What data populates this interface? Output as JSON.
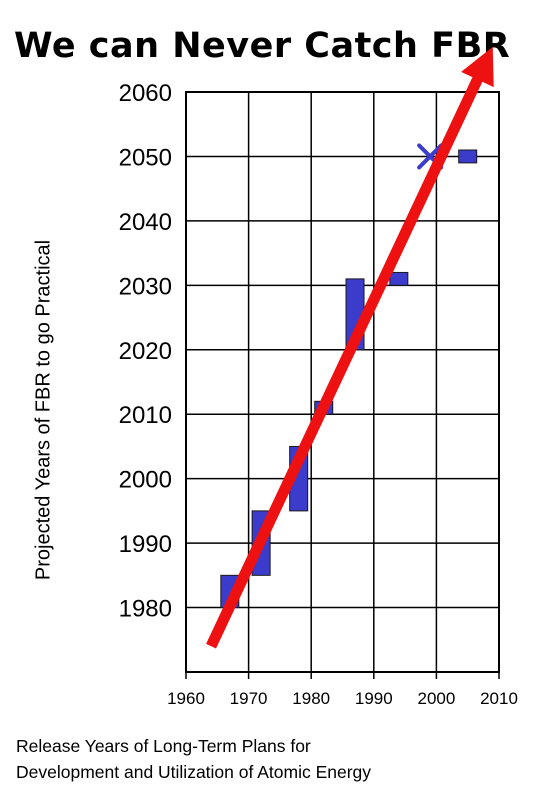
{
  "chart_data": {
    "type": "bar",
    "title": "We can Never Catch FBR",
    "ylabel": "Projected Years of FBR to go Practical",
    "xlabel_lines": [
      "Release Years of Long-Term Plans for",
      "Development and Utilization of Atomic Energy"
    ],
    "xlim": [
      1960,
      2010
    ],
    "ylim": [
      1970,
      2060
    ],
    "x_ticks": [
      1960,
      1970,
      1980,
      1990,
      2000,
      2010
    ],
    "y_ticks": [
      1980,
      1990,
      2000,
      2010,
      2020,
      2030,
      2040,
      2050,
      2060
    ],
    "grid": true,
    "series": [
      {
        "type": "range",
        "color": "#3b3bcc",
        "ranges": [
          {
            "x": 1967,
            "y_low": 1980,
            "y_high": 1985
          },
          {
            "x": 1972,
            "y_low": 1985,
            "y_high": 1995
          },
          {
            "x": 1978,
            "y_low": 1995,
            "y_high": 2005
          },
          {
            "x": 1982,
            "y_low": 2010,
            "y_high": 2012
          },
          {
            "x": 1987,
            "y_low": 2020,
            "y_high": 2031
          },
          {
            "x": 1994,
            "y_low": 2030,
            "y_high": 2032
          },
          {
            "x": 2005,
            "y_low": 2049,
            "y_high": 2051
          }
        ]
      },
      {
        "type": "marker",
        "marker": "x",
        "color": "#3b3bcc",
        "points": [
          {
            "x": 1999,
            "y": 2050
          }
        ]
      },
      {
        "type": "trend-arrow",
        "color": "#ee1111",
        "from": {
          "x": 1964,
          "y": 1974
        },
        "to": {
          "x": 2009,
          "y": 2067
        }
      }
    ]
  }
}
